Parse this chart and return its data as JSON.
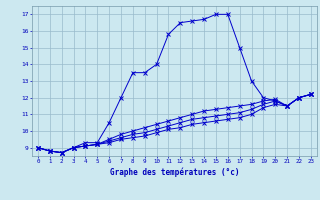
{
  "hours": [
    0,
    1,
    2,
    3,
    4,
    5,
    6,
    7,
    8,
    9,
    10,
    11,
    12,
    13,
    14,
    15,
    16,
    17,
    18,
    19,
    20,
    21,
    22,
    23
  ],
  "line1": [
    9.0,
    8.8,
    8.7,
    9.0,
    9.3,
    9.3,
    10.5,
    12.0,
    13.5,
    13.5,
    14.0,
    15.8,
    16.5,
    16.6,
    16.7,
    17.0,
    17.0,
    15.0,
    13.0,
    12.0,
    11.8,
    11.5,
    12.0,
    12.2
  ],
  "line2": [
    9.0,
    8.8,
    8.7,
    9.0,
    9.1,
    9.2,
    9.5,
    9.8,
    10.0,
    10.2,
    10.4,
    10.6,
    10.8,
    11.0,
    11.2,
    11.3,
    11.4,
    11.5,
    11.6,
    11.8,
    11.9,
    11.5,
    12.0,
    12.2
  ],
  "line3": [
    9.0,
    8.8,
    8.7,
    9.0,
    9.1,
    9.2,
    9.4,
    9.6,
    9.8,
    9.9,
    10.1,
    10.3,
    10.5,
    10.7,
    10.8,
    10.9,
    11.0,
    11.1,
    11.3,
    11.6,
    11.8,
    11.5,
    12.0,
    12.2
  ],
  "line4": [
    9.0,
    8.8,
    8.7,
    9.0,
    9.1,
    9.2,
    9.3,
    9.5,
    9.6,
    9.7,
    9.9,
    10.1,
    10.2,
    10.4,
    10.5,
    10.6,
    10.7,
    10.8,
    11.0,
    11.4,
    11.6,
    11.5,
    12.0,
    12.2
  ],
  "line_color": "#0000cc",
  "bg_color": "#cce8f0",
  "grid_color": "#99bbcc",
  "xlabel": "Graphe des températures (°c)",
  "xlabel_color": "#0000bb",
  "tick_color": "#0000bb",
  "xlim": [
    -0.5,
    23.5
  ],
  "ylim": [
    8.5,
    17.5
  ],
  "yticks": [
    9,
    10,
    11,
    12,
    13,
    14,
    15,
    16,
    17
  ],
  "xticks": [
    0,
    1,
    2,
    3,
    4,
    5,
    6,
    7,
    8,
    9,
    10,
    11,
    12,
    13,
    14,
    15,
    16,
    17,
    18,
    19,
    20,
    21,
    22,
    23
  ]
}
